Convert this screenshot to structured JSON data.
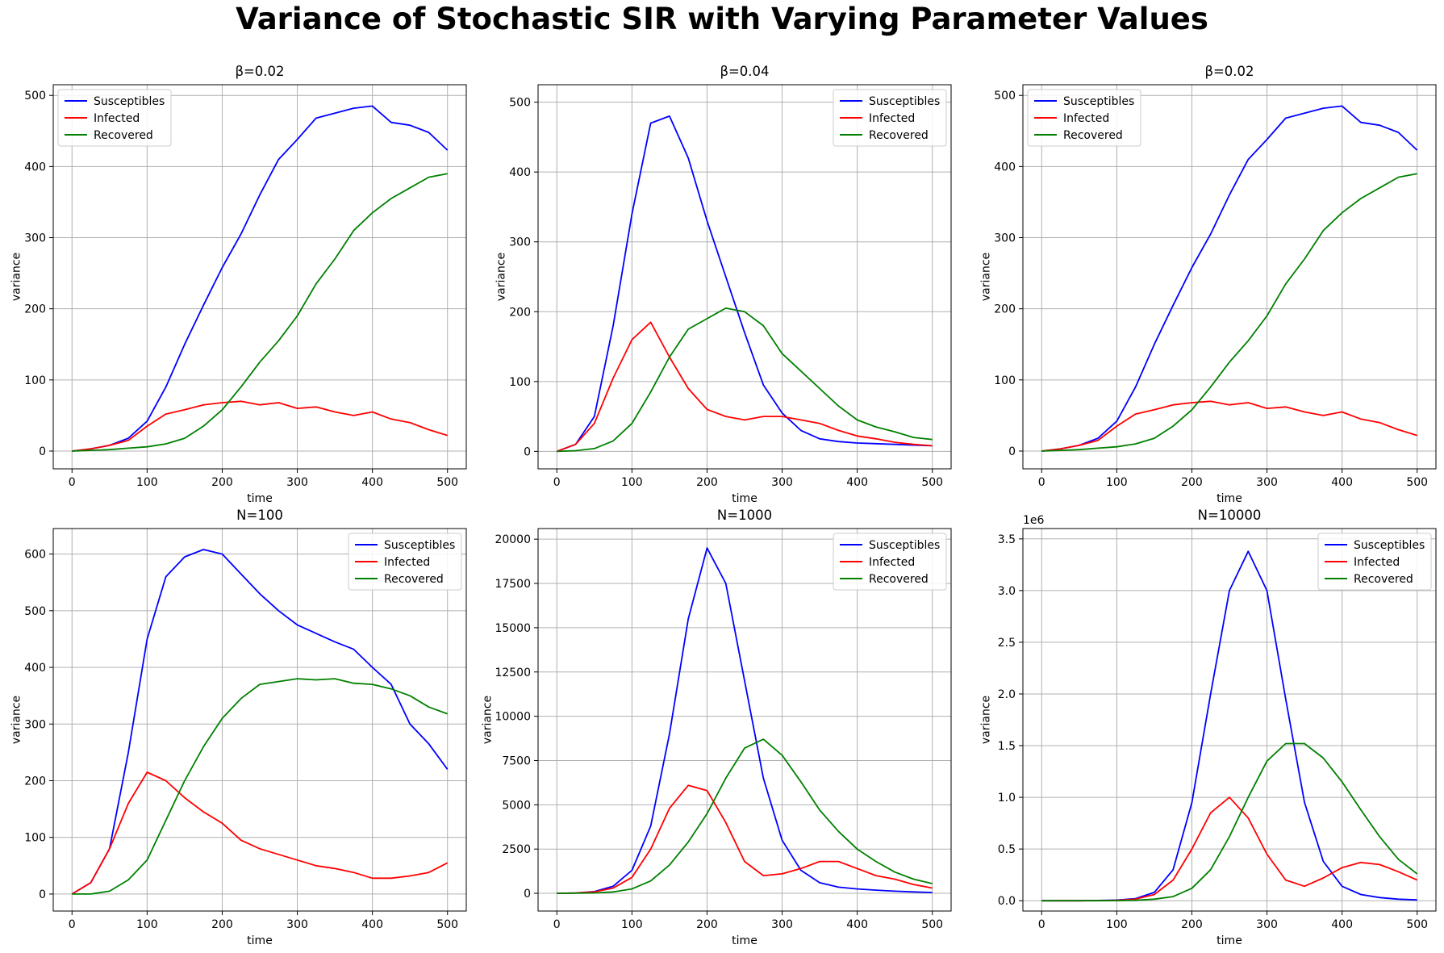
{
  "figure_title": "Variance of Stochastic SIR with Varying Parameter Values",
  "legend_labels": [
    "Susceptibles",
    "Infected",
    "Recovered"
  ],
  "series_colors": {
    "Susceptibles": "#0000ff",
    "Infected": "#ff0000",
    "Recovered": "#008000"
  },
  "chart_data": [
    {
      "type": "line",
      "title": "β=0.02",
      "xlabel": "time",
      "ylabel": "variance",
      "xlim": [
        -25,
        525
      ],
      "ylim": [
        -25,
        515
      ],
      "xticks": [
        0,
        100,
        200,
        300,
        400,
        500
      ],
      "yticks": [
        0,
        100,
        200,
        300,
        400,
        500
      ],
      "grid": true,
      "legend": "top-left",
      "x": [
        0,
        25,
        50,
        75,
        100,
        125,
        150,
        175,
        200,
        225,
        250,
        275,
        300,
        325,
        350,
        375,
        400,
        425,
        450,
        475,
        500
      ],
      "series": [
        {
          "name": "Susceptibles",
          "values": [
            0,
            3,
            8,
            18,
            42,
            90,
            150,
            205,
            258,
            305,
            360,
            410,
            438,
            468,
            475,
            482,
            485,
            462,
            458,
            448,
            423
          ]
        },
        {
          "name": "Infected",
          "values": [
            0,
            3,
            8,
            15,
            35,
            52,
            58,
            65,
            68,
            70,
            65,
            68,
            60,
            62,
            55,
            50,
            55,
            45,
            40,
            30,
            22
          ]
        },
        {
          "name": "Recovered",
          "values": [
            0,
            1,
            2,
            4,
            6,
            10,
            18,
            35,
            58,
            90,
            125,
            155,
            190,
            235,
            270,
            310,
            335,
            355,
            370,
            385,
            390
          ]
        }
      ]
    },
    {
      "type": "line",
      "title": "β=0.04",
      "xlabel": "time",
      "ylabel": "variance",
      "xlim": [
        -25,
        525
      ],
      "ylim": [
        -25,
        525
      ],
      "xticks": [
        0,
        100,
        200,
        300,
        400,
        500
      ],
      "yticks": [
        0,
        100,
        200,
        300,
        400,
        500
      ],
      "grid": true,
      "legend": "top-right",
      "x": [
        0,
        25,
        50,
        75,
        100,
        125,
        150,
        175,
        200,
        225,
        250,
        275,
        300,
        325,
        350,
        375,
        400,
        425,
        450,
        475,
        500
      ],
      "series": [
        {
          "name": "Susceptibles",
          "values": [
            0,
            10,
            50,
            180,
            340,
            470,
            480,
            420,
            330,
            250,
            170,
            95,
            55,
            30,
            18,
            14,
            12,
            11,
            10,
            9,
            8
          ]
        },
        {
          "name": "Infected",
          "values": [
            0,
            10,
            40,
            105,
            160,
            185,
            135,
            90,
            60,
            50,
            45,
            50,
            50,
            45,
            40,
            30,
            22,
            18,
            13,
            10,
            8
          ]
        },
        {
          "name": "Recovered",
          "values": [
            0,
            1,
            4,
            15,
            40,
            85,
            135,
            175,
            190,
            205,
            200,
            180,
            140,
            115,
            90,
            65,
            45,
            35,
            28,
            20,
            17
          ]
        }
      ]
    },
    {
      "type": "line",
      "title": "β=0.02",
      "xlabel": "time",
      "ylabel": "variance",
      "xlim": [
        -25,
        525
      ],
      "ylim": [
        -25,
        515
      ],
      "xticks": [
        0,
        100,
        200,
        300,
        400,
        500
      ],
      "yticks": [
        0,
        100,
        200,
        300,
        400,
        500
      ],
      "grid": true,
      "legend": "top-left",
      "x": [
        0,
        25,
        50,
        75,
        100,
        125,
        150,
        175,
        200,
        225,
        250,
        275,
        300,
        325,
        350,
        375,
        400,
        425,
        450,
        475,
        500
      ],
      "series": [
        {
          "name": "Susceptibles",
          "values": [
            0,
            3,
            8,
            18,
            42,
            90,
            150,
            205,
            258,
            305,
            360,
            410,
            438,
            468,
            475,
            482,
            485,
            462,
            458,
            448,
            423
          ]
        },
        {
          "name": "Infected",
          "values": [
            0,
            3,
            8,
            15,
            35,
            52,
            58,
            65,
            68,
            70,
            65,
            68,
            60,
            62,
            55,
            50,
            55,
            45,
            40,
            30,
            22
          ]
        },
        {
          "name": "Recovered",
          "values": [
            0,
            1,
            2,
            4,
            6,
            10,
            18,
            35,
            58,
            90,
            125,
            155,
            190,
            235,
            270,
            310,
            335,
            355,
            370,
            385,
            390
          ]
        }
      ]
    },
    {
      "type": "line",
      "title": "N=100",
      "xlabel": "time",
      "ylabel": "variance",
      "xlim": [
        -25,
        525
      ],
      "ylim": [
        -30,
        645
      ],
      "xticks": [
        0,
        100,
        200,
        300,
        400,
        500
      ],
      "yticks": [
        0,
        100,
        200,
        300,
        400,
        500,
        600
      ],
      "grid": true,
      "legend": "top-right",
      "x": [
        0,
        25,
        50,
        75,
        100,
        125,
        150,
        175,
        200,
        225,
        250,
        275,
        300,
        325,
        350,
        375,
        400,
        425,
        450,
        475,
        500
      ],
      "series": [
        {
          "name": "Susceptibles",
          "values": [
            0,
            20,
            80,
            250,
            450,
            560,
            595,
            608,
            600,
            565,
            530,
            500,
            475,
            460,
            445,
            432,
            400,
            370,
            300,
            265,
            220
          ]
        },
        {
          "name": "Infected",
          "values": [
            0,
            20,
            80,
            160,
            215,
            200,
            170,
            145,
            125,
            95,
            80,
            70,
            60,
            50,
            45,
            38,
            28,
            28,
            32,
            38,
            55
          ]
        },
        {
          "name": "Recovered",
          "values": [
            0,
            0,
            5,
            25,
            60,
            130,
            200,
            260,
            310,
            345,
            370,
            375,
            380,
            378,
            380,
            372,
            370,
            362,
            350,
            330,
            318
          ]
        }
      ]
    },
    {
      "type": "line",
      "title": "N=1000",
      "xlabel": "time",
      "ylabel": "variance",
      "xlim": [
        -25,
        525
      ],
      "ylim": [
        -1000,
        20600
      ],
      "xticks": [
        0,
        100,
        200,
        300,
        400,
        500
      ],
      "yticks": [
        0,
        2500,
        5000,
        7500,
        10000,
        12500,
        15000,
        17500,
        20000
      ],
      "grid": true,
      "legend": "top-right",
      "x": [
        0,
        25,
        50,
        75,
        100,
        125,
        150,
        175,
        200,
        225,
        250,
        275,
        300,
        325,
        350,
        375,
        400,
        425,
        450,
        475,
        500
      ],
      "series": [
        {
          "name": "Susceptibles",
          "values": [
            0,
            20,
            100,
            400,
            1300,
            3800,
            9000,
            15500,
            19500,
            17500,
            12000,
            6500,
            3000,
            1300,
            600,
            350,
            250,
            180,
            120,
            80,
            50
          ]
        },
        {
          "name": "Infected",
          "values": [
            0,
            15,
            80,
            300,
            900,
            2500,
            4800,
            6100,
            5800,
            4000,
            1800,
            1000,
            1100,
            1400,
            1800,
            1800,
            1400,
            1000,
            800,
            500,
            300
          ]
        },
        {
          "name": "Recovered",
          "values": [
            0,
            5,
            20,
            80,
            250,
            700,
            1600,
            2900,
            4500,
            6500,
            8200,
            8700,
            7800,
            6300,
            4700,
            3500,
            2500,
            1800,
            1200,
            800,
            550
          ]
        }
      ]
    },
    {
      "type": "line",
      "title": "N=10000",
      "xlabel": "time",
      "ylabel": "variance",
      "yscale_label": "1e6",
      "xlim": [
        -25,
        525
      ],
      "ylim": [
        -0.1,
        3.6
      ],
      "xticks": [
        0,
        100,
        200,
        300,
        400,
        500
      ],
      "yticks": [
        0.0,
        0.5,
        1.0,
        1.5,
        2.0,
        2.5,
        3.0,
        3.5
      ],
      "grid": true,
      "legend": "top-right",
      "x": [
        0,
        25,
        50,
        75,
        100,
        125,
        150,
        175,
        200,
        225,
        250,
        275,
        300,
        325,
        350,
        375,
        400,
        425,
        450,
        475,
        500
      ],
      "series": [
        {
          "name": "Susceptibles",
          "values": [
            0,
            0,
            0,
            0.002,
            0.006,
            0.02,
            0.08,
            0.3,
            0.95,
            2.0,
            3.0,
            3.38,
            3.0,
            1.95,
            0.95,
            0.38,
            0.14,
            0.06,
            0.03,
            0.015,
            0.008
          ]
        },
        {
          "name": "Infected",
          "values": [
            0,
            0,
            0,
            0.001,
            0.003,
            0.015,
            0.06,
            0.2,
            0.5,
            0.85,
            1.0,
            0.8,
            0.45,
            0.2,
            0.14,
            0.22,
            0.32,
            0.37,
            0.35,
            0.28,
            0.2
          ]
        },
        {
          "name": "Recovered",
          "values": [
            0,
            0,
            0,
            0,
            0.001,
            0.004,
            0.015,
            0.04,
            0.12,
            0.3,
            0.62,
            1.0,
            1.35,
            1.52,
            1.52,
            1.38,
            1.15,
            0.88,
            0.62,
            0.4,
            0.26
          ]
        }
      ]
    }
  ]
}
